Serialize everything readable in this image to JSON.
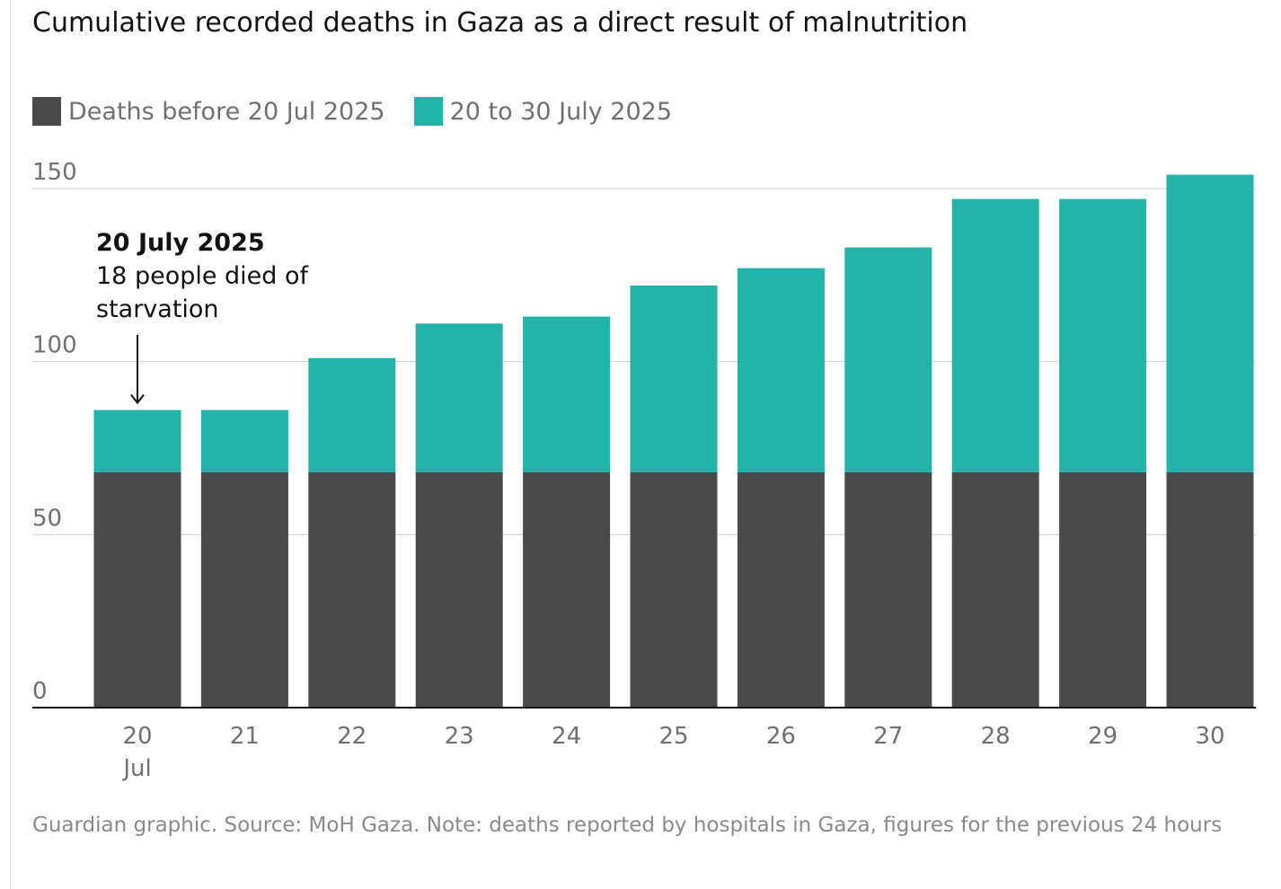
{
  "chart_data": {
    "type": "bar",
    "stacked": true,
    "title": "Cumulative recorded deaths in Gaza as a direct result of malnutrition",
    "categories": [
      "20",
      "21",
      "22",
      "23",
      "24",
      "25",
      "26",
      "27",
      "28",
      "29",
      "30"
    ],
    "first_category_sublabel": "Jul",
    "series": [
      {
        "name": "Deaths before 20 Jul 2025",
        "color": "#4a4a4a",
        "values": [
          68,
          68,
          68,
          68,
          68,
          68,
          68,
          68,
          68,
          68,
          68
        ]
      },
      {
        "name": "20 to 30 July 2025",
        "color": "#23b3a9",
        "values": [
          18,
          18,
          33,
          43,
          45,
          54,
          59,
          65,
          79,
          79,
          86
        ]
      }
    ],
    "totals": [
      86,
      86,
      101,
      111,
      113,
      122,
      127,
      133,
      147,
      147,
      154
    ],
    "ylim": [
      0,
      150
    ],
    "yticks": [
      0,
      50,
      100,
      150
    ],
    "grid": true,
    "legend_position": "top-left",
    "annotation": {
      "category": "20",
      "title": "20 July 2025",
      "lines": [
        "18 people died of",
        "starvation"
      ]
    },
    "source": "Guardian graphic. Source: MoH Gaza. Note: deaths reported by hospitals in Gaza, figures for the previous 24 hours"
  }
}
